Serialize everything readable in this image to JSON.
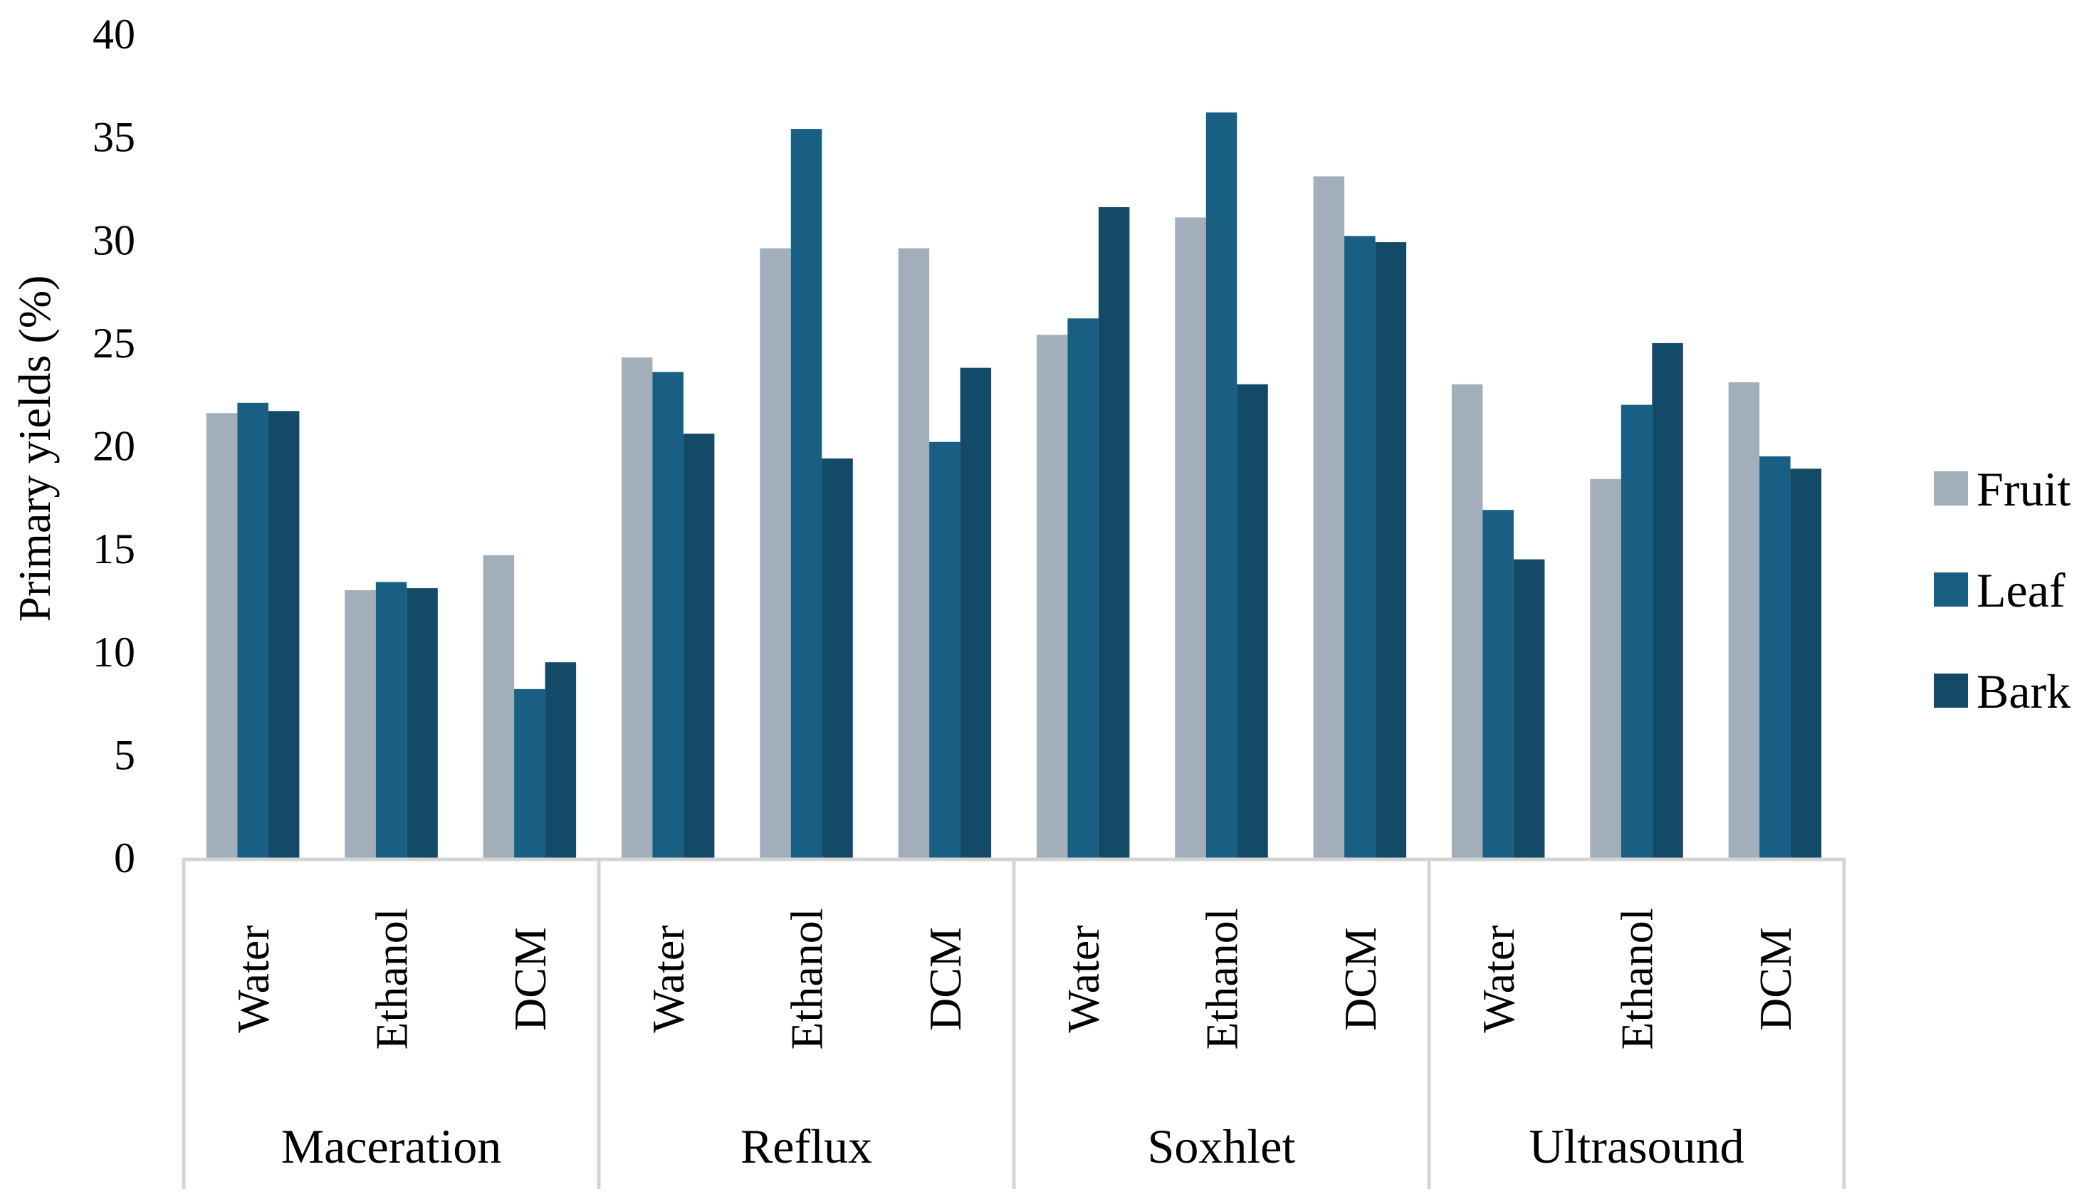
{
  "chart_data": {
    "type": "bar",
    "title": "",
    "xlabel": "",
    "ylabel": "Primary yields (%)",
    "ylim": [
      0,
      40
    ],
    "yticks": [
      "0",
      "5",
      "10",
      "15",
      "20",
      "25",
      "30",
      "35",
      "40"
    ],
    "grid": false,
    "legend_position": "right",
    "groups": [
      {
        "name": "Maceration",
        "categories": [
          "Water",
          "Ethanol",
          "DCM"
        ]
      },
      {
        "name": "Reflux",
        "categories": [
          "Water",
          "Ethanol",
          "DCM"
        ]
      },
      {
        "name": "Soxhlet",
        "categories": [
          "Water",
          "Ethanol",
          "DCM"
        ]
      },
      {
        "name": "Ultrasound",
        "categories": [
          "Water",
          "Ethanol",
          "DCM"
        ]
      }
    ],
    "series": [
      {
        "name": "Fruit",
        "color": "#a2aeb9",
        "values": [
          21.6,
          13.0,
          14.7,
          24.3,
          29.6,
          29.6,
          25.4,
          31.1,
          33.1,
          23.0,
          18.4,
          23.1
        ]
      },
      {
        "name": "Leaf",
        "color": "#185f83",
        "values": [
          22.1,
          13.4,
          8.2,
          23.6,
          35.4,
          20.2,
          26.2,
          36.2,
          30.2,
          16.9,
          22.0,
          19.5
        ]
      },
      {
        "name": "Bark",
        "color": "#134a68",
        "values": [
          21.7,
          13.1,
          9.5,
          20.6,
          19.4,
          23.8,
          31.6,
          23.0,
          29.9,
          14.5,
          25.0,
          18.9
        ]
      }
    ]
  }
}
